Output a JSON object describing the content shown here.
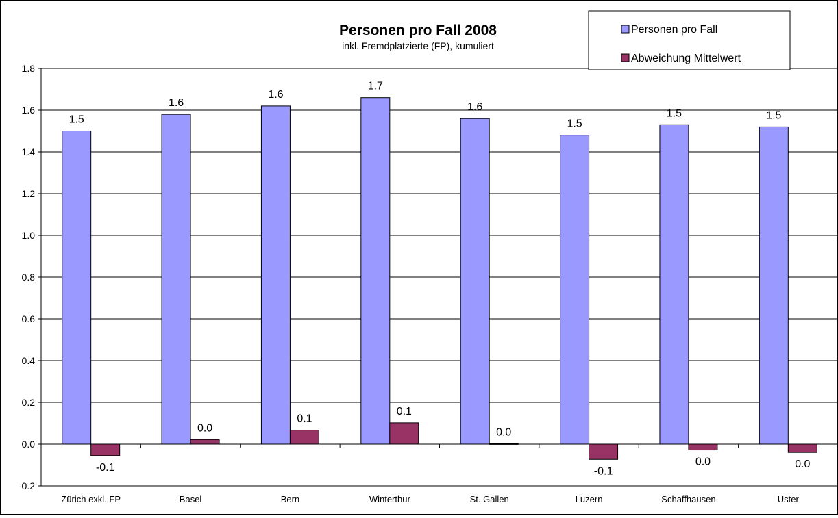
{
  "chart_data": {
    "type": "bar",
    "title": "Personen pro Fall 2008",
    "subtitle": "inkl. Fremdplatzierte (FP), kumuliert",
    "categories": [
      "Zürich exkl. FP",
      "Basel",
      "Bern",
      "Winterthur",
      "St. Gallen",
      "Luzern",
      "Schaffhausen",
      "Uster"
    ],
    "series": [
      {
        "name": "Personen pro Fall",
        "color": "#9999ff",
        "values": [
          1.5,
          1.58,
          1.62,
          1.66,
          1.56,
          1.48,
          1.53,
          1.52
        ],
        "labels": [
          "1.5",
          "1.6",
          "1.6",
          "1.7",
          "1.6",
          "1.5",
          "1.5",
          "1.5"
        ]
      },
      {
        "name": "Abweichung Mittelwert",
        "color": "#993366",
        "values": [
          -0.055,
          0.022,
          0.067,
          0.102,
          0.002,
          -0.073,
          -0.028,
          -0.04
        ],
        "labels": [
          "-0.1",
          "0.0",
          "0.1",
          "0.1",
          "0.0",
          "-0.1",
          "0.0",
          "0.0"
        ]
      }
    ],
    "ylim": [
      -0.2,
      1.8
    ],
    "yticks": [
      "-0.2",
      "0.0",
      "0.2",
      "0.4",
      "0.6",
      "0.8",
      "1.0",
      "1.2",
      "1.4",
      "1.6",
      "1.8"
    ],
    "grid": true,
    "legend": "top-right"
  }
}
